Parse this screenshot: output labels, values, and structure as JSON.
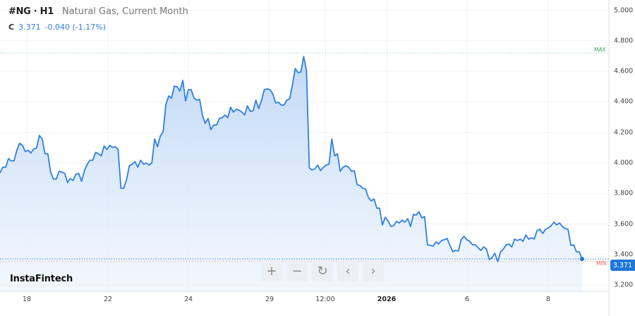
{
  "header": {
    "symbol": "#NG · H1",
    "name": "Natural Gas, Current Month"
  },
  "quote": {
    "label": "C",
    "last": "3.371",
    "change": "-0.040 (-1.17%)"
  },
  "logo": "InstaFintech",
  "controls": [
    {
      "name": "zoom-in",
      "glyph": "+"
    },
    {
      "name": "zoom-out",
      "glyph": "−"
    },
    {
      "name": "reset",
      "glyph": "↻"
    },
    {
      "name": "scroll-left",
      "glyph": "‹"
    },
    {
      "name": "scroll-right",
      "glyph": "›"
    }
  ],
  "colors": {
    "line": "#2f7fe0",
    "fill": "#cfe1f7",
    "max": "#3aa55a",
    "min": "#e06666",
    "badge": "#1f77d9"
  },
  "chart_data": {
    "type": "area",
    "ylim": [
      3.2,
      5.0
    ],
    "y_ticks": [
      "5.000",
      "4.800",
      "4.600",
      "4.400",
      "4.200",
      "4.000",
      "3.800",
      "3.600",
      "3.400",
      "3.200"
    ],
    "x_ticks": [
      {
        "label": "18",
        "bold": false
      },
      {
        "label": "22",
        "bold": false
      },
      {
        "label": "24",
        "bold": false
      },
      {
        "label": "29",
        "bold": false
      },
      {
        "label": "12:00",
        "bold": false
      },
      {
        "label": "2026",
        "bold": true
      },
      {
        "label": "6",
        "bold": false
      },
      {
        "label": "8",
        "bold": false
      }
    ],
    "max_label": "MAX",
    "min_label": "MIN",
    "max_value": 4.72,
    "min_value": 3.35,
    "last_value": "3.371",
    "grid": true,
    "values": [
      3.935,
      3.972,
      3.972,
      4.028,
      4.014,
      4.014,
      4.083,
      4.129,
      4.115,
      4.074,
      4.083,
      4.065,
      4.092,
      4.097,
      4.18,
      4.157,
      4.06,
      4.06,
      3.94,
      3.894,
      3.894,
      3.945,
      3.94,
      3.931,
      3.871,
      3.898,
      3.885,
      3.926,
      3.931,
      3.88,
      3.949,
      3.991,
      4.018,
      4.018,
      4.069,
      4.06,
      4.046,
      4.111,
      4.088,
      4.115,
      4.102,
      4.106,
      4.088,
      3.834,
      3.834,
      3.889,
      3.982,
      3.991,
      4.009,
      3.972,
      4.018,
      3.991,
      4.0,
      3.986,
      4.0,
      4.157,
      4.106,
      4.176,
      4.203,
      4.383,
      4.439,
      4.425,
      4.503,
      4.499,
      4.471,
      4.54,
      4.406,
      4.48,
      4.48,
      4.425,
      4.411,
      4.416,
      4.309,
      4.259,
      4.291,
      4.217,
      4.249,
      4.249,
      4.291,
      4.296,
      4.314,
      4.296,
      4.365,
      4.333,
      4.351,
      4.346,
      4.333,
      4.314,
      4.374,
      4.337,
      4.342,
      4.411,
      4.356,
      4.411,
      4.48,
      4.485,
      4.48,
      4.453,
      4.393,
      4.397,
      4.379,
      4.379,
      4.411,
      4.42,
      4.513,
      4.619,
      4.591,
      4.596,
      4.697,
      4.605,
      3.968,
      3.954,
      3.963,
      3.986,
      3.949,
      3.972,
      3.986,
      3.991,
      4.157,
      4.046,
      4.06,
      3.945,
      3.972,
      3.982,
      3.972,
      3.945,
      3.949,
      3.857,
      3.852,
      3.834,
      3.829,
      3.774,
      3.751,
      3.764,
      3.704,
      3.704,
      3.594,
      3.644,
      3.621,
      3.584,
      3.589,
      3.617,
      3.607,
      3.626,
      3.612,
      3.635,
      3.584,
      3.663,
      3.658,
      3.681,
      3.64,
      3.649,
      3.464,
      3.46,
      3.455,
      3.483,
      3.469,
      3.492,
      3.497,
      3.506,
      3.46,
      3.418,
      3.427,
      3.423,
      3.497,
      3.52,
      3.497,
      3.487,
      3.464,
      3.464,
      3.446,
      3.427,
      3.45,
      3.436,
      3.367,
      3.381,
      3.409,
      3.353,
      3.418,
      3.436,
      3.464,
      3.469,
      3.45,
      3.501,
      3.492,
      3.501,
      3.487,
      3.529,
      3.501,
      3.51,
      3.501,
      3.557,
      3.566,
      3.538,
      3.566,
      3.575,
      3.589,
      3.612,
      3.594,
      3.607,
      3.584,
      3.57,
      3.566,
      3.46,
      3.464,
      3.418,
      3.418,
      3.371
    ]
  }
}
